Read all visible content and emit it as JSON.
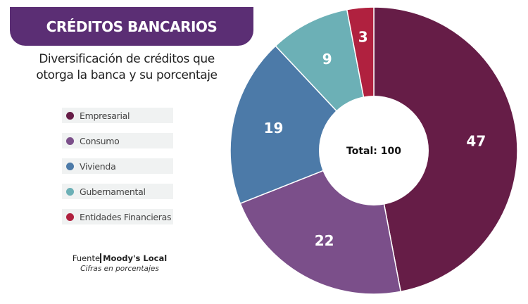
{
  "header": {
    "title": "CRÉDITOS BANCARIOS",
    "subtitle": "Diversificación de créditos que otorga la banca y su porcentaje"
  },
  "footer": {
    "source_label": "Fuente",
    "source": "Moody's Local",
    "note": "Cifras en porcentajes"
  },
  "chart_data": {
    "type": "pie",
    "donut": true,
    "center_label": "Total: 100",
    "categories": [
      "Empresarial",
      "Consumo",
      "Vivienda",
      "Gubernamental",
      "Entidades Financieras"
    ],
    "values": [
      47,
      22,
      19,
      9,
      3
    ],
    "colors": [
      "#661d47",
      "#7b4f8a",
      "#4c7aa8",
      "#6cb0b6",
      "#b0213f"
    ],
    "legend": "left",
    "start": "top, clockwise"
  }
}
